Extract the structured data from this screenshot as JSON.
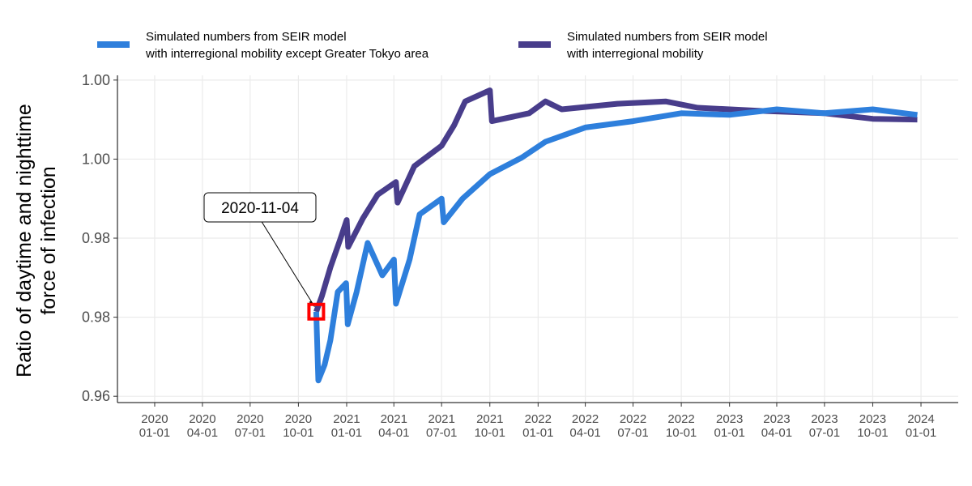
{
  "chart_data": {
    "type": "line",
    "y_label": "Ratio of daytime and nighttime\nforce of infection",
    "xlim": [
      "2019-10-22",
      "2024-03-12"
    ],
    "xticks": [
      {
        "value": "2020-01-01",
        "label": "2020\n01-01"
      },
      {
        "value": "2020-04-01",
        "label": "2020\n04-01"
      },
      {
        "value": "2020-07-01",
        "label": "2020\n07-01"
      },
      {
        "value": "2020-10-01",
        "label": "2020\n10-01"
      },
      {
        "value": "2021-01-01",
        "label": "2021\n01-01"
      },
      {
        "value": "2021-04-01",
        "label": "2021\n04-01"
      },
      {
        "value": "2021-07-01",
        "label": "2021\n07-01"
      },
      {
        "value": "2021-10-01",
        "label": "2021\n10-01"
      },
      {
        "value": "2022-01-01",
        "label": "2022\n01-01"
      },
      {
        "value": "2022-04-01",
        "label": "2022\n04-01"
      },
      {
        "value": "2022-07-01",
        "label": "2022\n07-01"
      },
      {
        "value": "2022-10-01",
        "label": "2022\n10-01"
      },
      {
        "value": "2023-01-01",
        "label": "2023\n01-01"
      },
      {
        "value": "2023-04-01",
        "label": "2023\n04-01"
      },
      {
        "value": "2023-07-01",
        "label": "2023\n07-01"
      },
      {
        "value": "2023-10-01",
        "label": "2023\n10-01"
      },
      {
        "value": "2024-01-01",
        "label": "2024\n01-01"
      }
    ],
    "ylim": [
      0.9642,
      1.0056
    ],
    "yticks": [
      {
        "value": 0.965,
        "label": "0.96"
      },
      {
        "value": 0.975,
        "label": "0.98"
      },
      {
        "value": 0.985,
        "label": "0.98"
      },
      {
        "value": 0.995,
        "label": "1.00"
      },
      {
        "value": 1.005,
        "label": "1.00"
      }
    ],
    "grid": true,
    "legend_position": "top",
    "series": [
      {
        "name": "Simulated numbers from SEIR model\nwith interregional mobility",
        "color": "#483d8b",
        "x": [
          "2020-11-04",
          "2020-11-15",
          "2020-12-01",
          "2020-12-20",
          "2021-01-01",
          "2021-01-04",
          "2021-02-01",
          "2021-03-01",
          "2021-04-05",
          "2021-04-08",
          "2021-05-10",
          "2021-07-01",
          "2021-07-25",
          "2021-08-15",
          "2021-10-01",
          "2021-10-05",
          "2021-12-15",
          "2022-01-15",
          "2022-02-15",
          "2022-06-01",
          "2022-09-01",
          "2022-11-01",
          "2023-03-01",
          "2023-07-01",
          "2023-10-01",
          "2023-12-25"
        ],
        "values": [
          0.9757,
          0.9777,
          0.9813,
          0.9849,
          0.9873,
          0.9839,
          0.9875,
          0.9905,
          0.9921,
          0.9895,
          0.9941,
          0.9967,
          0.9993,
          1.0023,
          1.0037,
          0.9998,
          1.0008,
          1.0023,
          1.0013,
          1.002,
          1.0023,
          1.0015,
          1.0011,
          1.0008,
          1.0001,
          1.0
        ]
      },
      {
        "name": "Simulated numbers from SEIR model\nwith interregional mobility except Greater Tokyo area",
        "color": "#2e7fdc",
        "x": [
          "2020-11-04",
          "2020-11-08",
          "2020-11-20",
          "2020-12-01",
          "2020-12-15",
          "2020-12-31",
          "2021-01-03",
          "2021-01-20",
          "2021-02-10",
          "2021-03-10",
          "2021-04-01",
          "2021-04-05",
          "2021-05-01",
          "2021-05-20",
          "2021-07-01",
          "2021-07-05",
          "2021-08-10",
          "2021-10-01",
          "2021-12-01",
          "2022-01-15",
          "2022-04-01",
          "2022-07-01",
          "2022-10-01",
          "2023-01-01",
          "2023-04-01",
          "2023-07-01",
          "2023-10-01",
          "2023-12-25"
        ],
        "values": [
          0.9757,
          0.967,
          0.969,
          0.9721,
          0.9782,
          0.9793,
          0.9741,
          0.9782,
          0.9844,
          0.9803,
          0.9823,
          0.9767,
          0.9823,
          0.988,
          0.99,
          0.987,
          0.99,
          0.9931,
          0.9952,
          0.9972,
          0.999,
          0.9998,
          1.0008,
          1.0006,
          1.0013,
          1.0008,
          1.0013,
          1.0006
        ]
      }
    ],
    "annotations": [
      {
        "text": "2020-11-04",
        "x": "2020-11-04",
        "y": 0.9757
      }
    ]
  }
}
